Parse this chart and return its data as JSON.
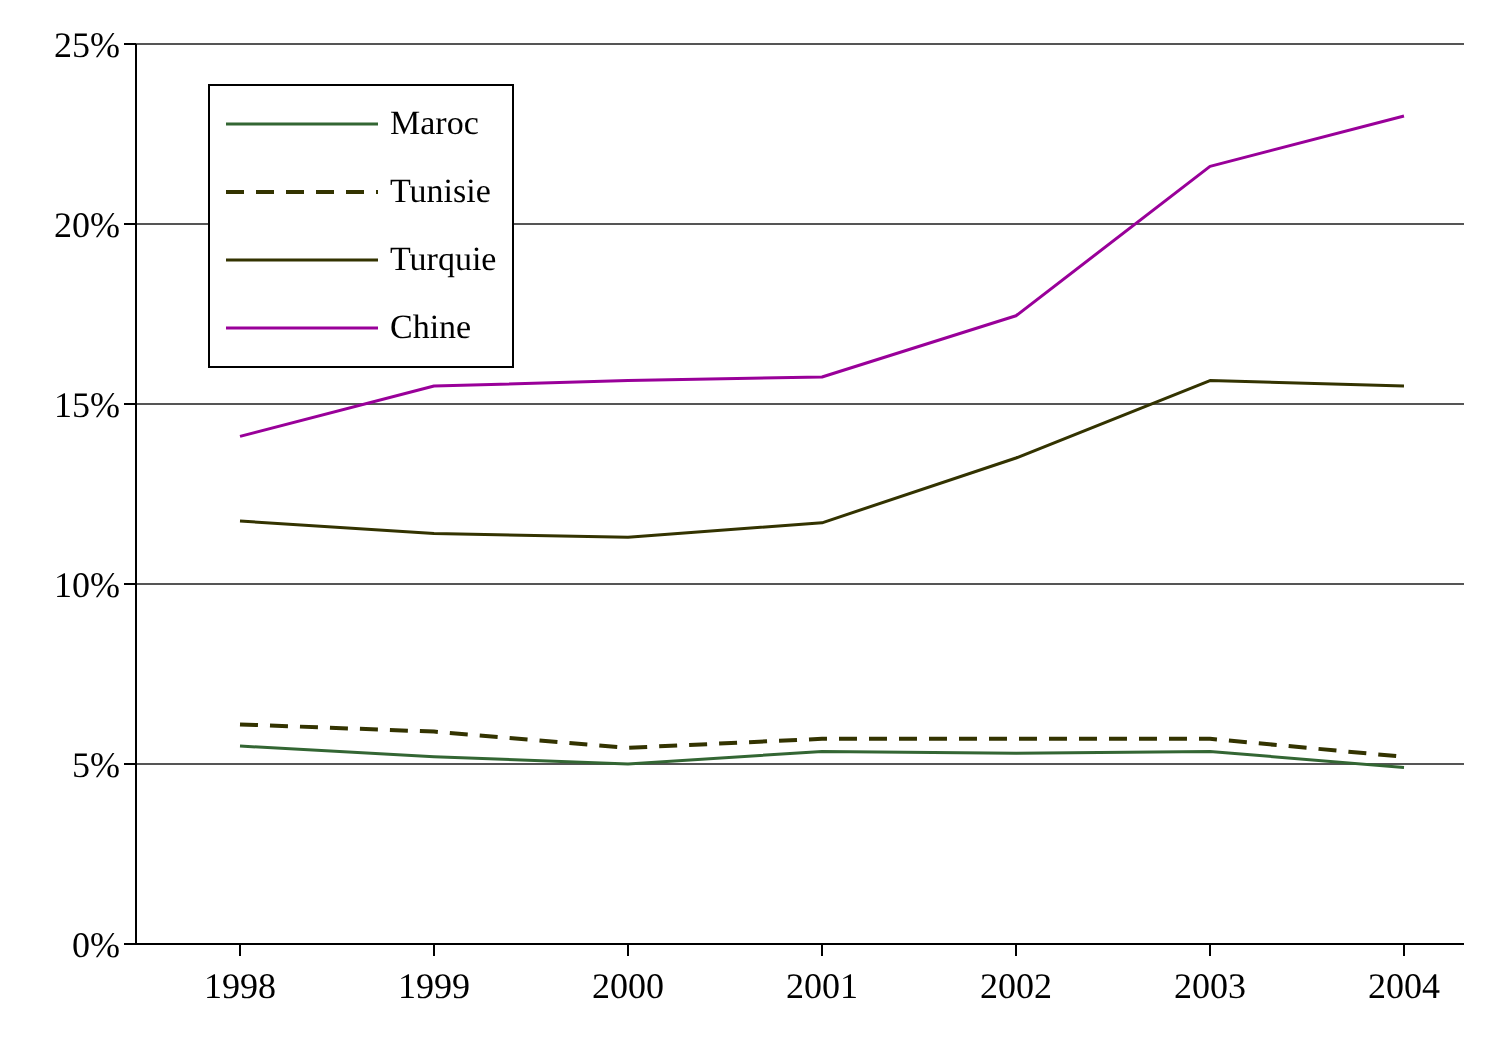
{
  "chart_data": {
    "type": "line",
    "categories": [
      "1998",
      "1999",
      "2000",
      "2001",
      "2002",
      "2003",
      "2004"
    ],
    "series": [
      {
        "name": "Maroc",
        "color": "#336633",
        "line_style": "solid",
        "values": [
          5.5,
          5.2,
          5.0,
          5.35,
          5.3,
          5.35,
          4.9
        ]
      },
      {
        "name": "Tunisie",
        "color": "#333300",
        "line_style": "dashed",
        "values": [
          6.1,
          5.9,
          5.45,
          5.7,
          5.7,
          5.7,
          5.2
        ]
      },
      {
        "name": "Turquie",
        "color": "#333300",
        "line_style": "solid",
        "values": [
          11.75,
          11.4,
          11.3,
          11.7,
          13.5,
          15.65,
          15.5
        ]
      },
      {
        "name": "Chine",
        "color": "#990099",
        "line_style": "solid",
        "values": [
          14.1,
          15.5,
          15.65,
          15.75,
          17.45,
          21.6,
          23.0
        ]
      }
    ],
    "ylim": [
      0,
      25
    ],
    "yticks": [
      {
        "value": 0,
        "label": "0%"
      },
      {
        "value": 5,
        "label": "5%"
      },
      {
        "value": 10,
        "label": "10%"
      },
      {
        "value": 15,
        "label": "15%"
      },
      {
        "value": 20,
        "label": "20%"
      },
      {
        "value": 25,
        "label": "25%"
      }
    ],
    "grid": "y",
    "legend": "top left",
    "marker": "none"
  }
}
